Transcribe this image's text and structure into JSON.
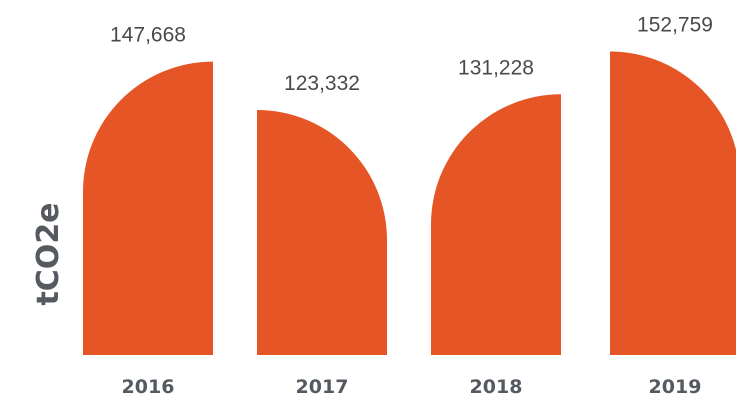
{
  "chart_data": {
    "type": "bar",
    "title": "",
    "xlabel": "",
    "ylabel": "tCO2e",
    "categories": [
      "2016",
      "2017",
      "2018",
      "2019"
    ],
    "values": [
      147668,
      123332,
      131228,
      152759
    ],
    "value_labels": [
      "147,668",
      "123,332",
      "131,228",
      "152,759"
    ],
    "ylim": [
      0,
      160000
    ],
    "grid": false,
    "legend": "none",
    "bar_color": "#e55526",
    "bar_shape": [
      "round-top-left",
      "round-top-right",
      "round-top-left",
      "round-top-right"
    ]
  }
}
